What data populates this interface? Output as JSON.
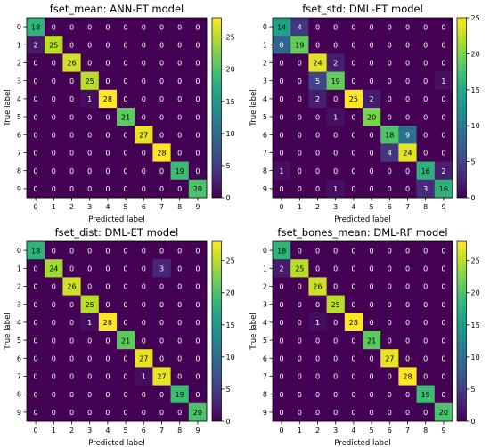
{
  "chart_data": [
    {
      "type": "heatmap",
      "title": "fset_mean: ANN-ET model",
      "xlabel": "Predicted label",
      "ylabel": "True label",
      "labels": [
        "0",
        "1",
        "2",
        "3",
        "4",
        "5",
        "6",
        "7",
        "8",
        "9"
      ],
      "matrix": [
        [
          18,
          0,
          0,
          0,
          0,
          0,
          0,
          0,
          0,
          0
        ],
        [
          2,
          25,
          0,
          0,
          0,
          0,
          0,
          0,
          0,
          0
        ],
        [
          0,
          0,
          26,
          0,
          0,
          0,
          0,
          0,
          0,
          0
        ],
        [
          0,
          0,
          0,
          25,
          0,
          0,
          0,
          0,
          0,
          0
        ],
        [
          0,
          0,
          0,
          1,
          28,
          0,
          0,
          0,
          0,
          0
        ],
        [
          0,
          0,
          0,
          0,
          0,
          21,
          0,
          0,
          0,
          0
        ],
        [
          0,
          0,
          0,
          0,
          0,
          0,
          27,
          0,
          0,
          0
        ],
        [
          0,
          0,
          0,
          0,
          0,
          0,
          0,
          28,
          0,
          0
        ],
        [
          0,
          0,
          0,
          0,
          0,
          0,
          0,
          0,
          19,
          0
        ],
        [
          0,
          0,
          0,
          0,
          0,
          0,
          0,
          0,
          0,
          20
        ]
      ],
      "vmax": 28,
      "colorbar_ticks": [
        0,
        5,
        10,
        15,
        20,
        25
      ]
    },
    {
      "type": "heatmap",
      "title": "fset_std: DML-ET model",
      "xlabel": "Predicted label",
      "ylabel": "True label",
      "labels": [
        "0",
        "1",
        "2",
        "3",
        "4",
        "5",
        "6",
        "7",
        "8",
        "9"
      ],
      "matrix": [
        [
          14,
          4,
          0,
          0,
          0,
          0,
          0,
          0,
          0,
          0
        ],
        [
          8,
          19,
          0,
          0,
          0,
          0,
          0,
          0,
          0,
          0
        ],
        [
          0,
          0,
          24,
          2,
          0,
          0,
          0,
          0,
          0,
          0
        ],
        [
          0,
          0,
          5,
          19,
          0,
          0,
          0,
          0,
          0,
          1
        ],
        [
          0,
          0,
          2,
          0,
          25,
          2,
          0,
          0,
          0,
          0
        ],
        [
          0,
          0,
          0,
          1,
          0,
          20,
          0,
          0,
          0,
          0
        ],
        [
          0,
          0,
          0,
          0,
          0,
          0,
          18,
          9,
          0,
          0
        ],
        [
          0,
          0,
          0,
          0,
          0,
          0,
          4,
          24,
          0,
          0
        ],
        [
          1,
          0,
          0,
          0,
          0,
          0,
          0,
          0,
          16,
          2
        ],
        [
          0,
          0,
          0,
          1,
          0,
          0,
          0,
          0,
          3,
          16
        ]
      ],
      "vmax": 25,
      "colorbar_ticks": [
        0,
        5,
        10,
        15,
        20,
        25
      ]
    },
    {
      "type": "heatmap",
      "title": "fset_dist: DML-ET model",
      "xlabel": "Predicted label",
      "ylabel": "True label",
      "labels": [
        "0",
        "1",
        "2",
        "3",
        "4",
        "5",
        "6",
        "7",
        "8",
        "9"
      ],
      "matrix": [
        [
          18,
          0,
          0,
          0,
          0,
          0,
          0,
          0,
          0,
          0
        ],
        [
          0,
          24,
          0,
          0,
          0,
          0,
          0,
          3,
          0,
          0
        ],
        [
          0,
          0,
          26,
          0,
          0,
          0,
          0,
          0,
          0,
          0
        ],
        [
          0,
          0,
          0,
          25,
          0,
          0,
          0,
          0,
          0,
          0
        ],
        [
          0,
          0,
          0,
          1,
          28,
          0,
          0,
          0,
          0,
          0
        ],
        [
          0,
          0,
          0,
          0,
          0,
          21,
          0,
          0,
          0,
          0
        ],
        [
          0,
          0,
          0,
          0,
          0,
          0,
          27,
          0,
          0,
          0
        ],
        [
          0,
          0,
          0,
          0,
          0,
          0,
          1,
          27,
          0,
          0
        ],
        [
          0,
          0,
          0,
          0,
          0,
          0,
          0,
          0,
          19,
          0
        ],
        [
          0,
          0,
          0,
          0,
          0,
          0,
          0,
          0,
          0,
          20
        ]
      ],
      "vmax": 28,
      "colorbar_ticks": [
        0,
        5,
        10,
        15,
        20,
        25
      ]
    },
    {
      "type": "heatmap",
      "title": "fset_bones_mean: DML-RF model",
      "xlabel": "Predicted label",
      "ylabel": "True label",
      "labels": [
        "0",
        "1",
        "2",
        "3",
        "4",
        "5",
        "6",
        "7",
        "8",
        "9"
      ],
      "matrix": [
        [
          18,
          0,
          0,
          0,
          0,
          0,
          0,
          0,
          0,
          0
        ],
        [
          2,
          25,
          0,
          0,
          0,
          0,
          0,
          0,
          0,
          0
        ],
        [
          0,
          0,
          26,
          0,
          0,
          0,
          0,
          0,
          0,
          0
        ],
        [
          0,
          0,
          0,
          25,
          0,
          0,
          0,
          0,
          0,
          0
        ],
        [
          0,
          0,
          1,
          0,
          28,
          0,
          0,
          0,
          0,
          0
        ],
        [
          0,
          0,
          0,
          0,
          0,
          21,
          0,
          0,
          0,
          0
        ],
        [
          0,
          0,
          0,
          0,
          0,
          0,
          27,
          0,
          0,
          0
        ],
        [
          0,
          0,
          0,
          0,
          0,
          0,
          0,
          28,
          0,
          0
        ],
        [
          0,
          0,
          0,
          0,
          0,
          0,
          0,
          0,
          19,
          0
        ],
        [
          0,
          0,
          0,
          0,
          0,
          0,
          0,
          0,
          0,
          20
        ]
      ],
      "vmax": 28,
      "colorbar_ticks": [
        0,
        5,
        10,
        15,
        20,
        25
      ]
    }
  ]
}
